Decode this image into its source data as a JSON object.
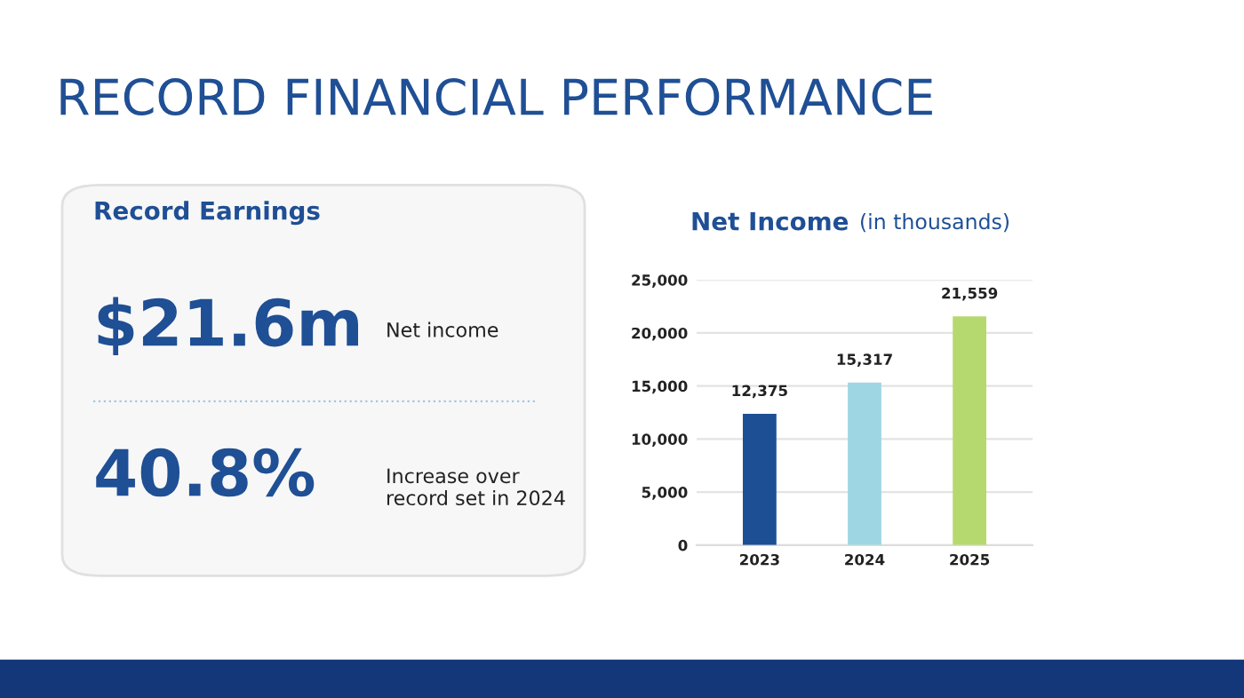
{
  "chart_data": [
    {
      "type": "other",
      "title": "RECORD FINANCIAL PERFORMANCE",
      "subtitle": "Record Earnings",
      "annotations": [
        "$21.6m",
        "Net income",
        "40.8%",
        "Increase over record set in 2024"
      ]
    },
    {
      "type": "bar",
      "title": "Net Income",
      "subtitle": "(in thousands)",
      "categories": [
        "2023",
        "2024",
        "2025"
      ],
      "values": [
        12375,
        15317,
        21559
      ],
      "colors": [
        "#1c4f93",
        "#9fd6e4",
        "#b6d96f"
      ],
      "value_labels": [
        "12,375",
        "15,317",
        "21,559"
      ],
      "ylim": [
        0,
        25000
      ],
      "yticks": [
        0,
        {
          "value": 5000,
          "label": "5,000"
        },
        {
          "value": 10000,
          "label": "10,000"
        },
        {
          "value": 15000,
          "label": "15,000"
        },
        {
          "value": 20000,
          "label": "20,000"
        },
        {
          "value": 25000,
          "label": "25,000"
        }
      ],
      "grid": "y",
      "legend": false
    }
  ]
}
